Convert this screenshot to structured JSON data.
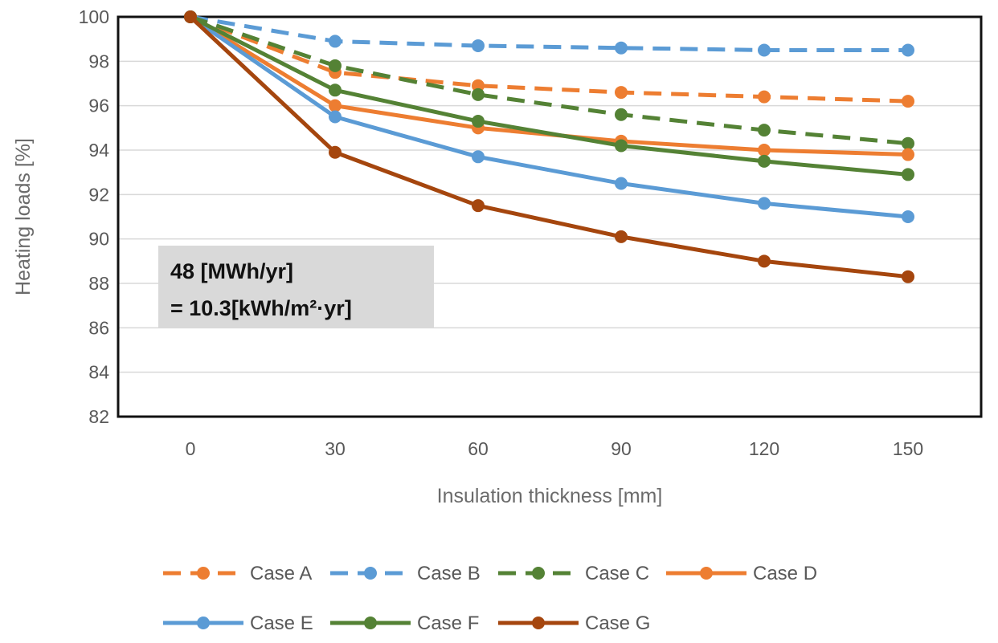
{
  "chart_data": {
    "type": "line",
    "title": "",
    "xlabel": "Insulation thickness [mm]",
    "ylabel": "Heating loads [%]",
    "x": [
      0,
      30,
      60,
      90,
      120,
      150
    ],
    "xticks": [
      "0",
      "30",
      "60",
      "90",
      "120",
      "150"
    ],
    "yticks": [
      "82",
      "84",
      "86",
      "88",
      "90",
      "92",
      "94",
      "96",
      "98",
      "100"
    ],
    "ylim": [
      82,
      100
    ],
    "grid": "horizontal",
    "legend_position": "bottom",
    "annotation": {
      "line1": "48 [MWh/yr]",
      "line2": "= 10.3[kWh/m²·yr]"
    },
    "series": [
      {
        "name": "Case A",
        "color": "#ED7D31",
        "dash": true,
        "values": [
          100,
          97.5,
          96.9,
          96.6,
          96.4,
          96.2
        ]
      },
      {
        "name": "Case B",
        "color": "#5B9BD5",
        "dash": true,
        "values": [
          100,
          98.9,
          98.7,
          98.6,
          98.5,
          98.5
        ]
      },
      {
        "name": "Case C",
        "color": "#548235",
        "dash": true,
        "values": [
          100,
          97.8,
          96.5,
          95.6,
          94.9,
          94.3
        ]
      },
      {
        "name": "Case D",
        "color": "#ED7D31",
        "dash": false,
        "values": [
          100,
          96.0,
          95.0,
          94.4,
          94.0,
          93.8
        ]
      },
      {
        "name": "Case E",
        "color": "#5B9BD5",
        "dash": false,
        "values": [
          100,
          95.5,
          93.7,
          92.5,
          91.6,
          91.0
        ]
      },
      {
        "name": "Case F",
        "color": "#548235",
        "dash": false,
        "values": [
          100,
          96.7,
          95.3,
          94.2,
          93.5,
          92.9
        ]
      },
      {
        "name": "Case G",
        "color": "#A5460E",
        "dash": false,
        "values": [
          100,
          93.9,
          91.5,
          90.1,
          89.0,
          88.3
        ]
      }
    ]
  }
}
